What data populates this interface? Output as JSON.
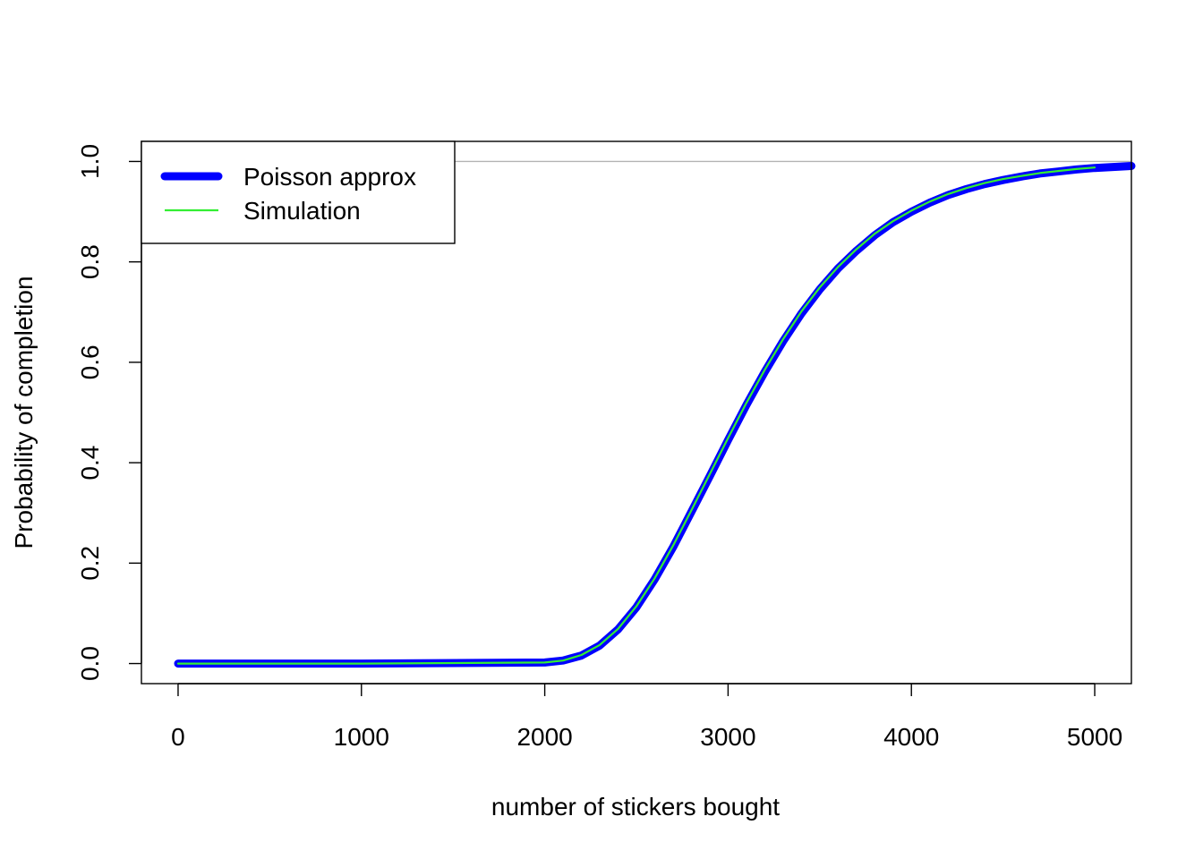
{
  "chart_data": {
    "type": "line",
    "title": "",
    "xlabel": "number of stickers bought",
    "ylabel": "Probability of completion",
    "xlim": [
      -200,
      5200
    ],
    "ylim": [
      -0.04,
      1.04
    ],
    "x_ticks": [
      0,
      1000,
      2000,
      3000,
      4000,
      5000
    ],
    "x_tick_labels": [
      "0",
      "1000",
      "2000",
      "3000",
      "4000",
      "5000"
    ],
    "y_ticks": [
      0.0,
      0.2,
      0.4,
      0.6,
      0.8,
      1.0
    ],
    "y_tick_labels": [
      "0.0",
      "0.2",
      "0.4",
      "0.6",
      "0.8",
      "1.0"
    ],
    "grid": false,
    "reference_line": {
      "y": 1.0,
      "color": "#b3b3b3"
    },
    "legend": {
      "position": "top-left"
    },
    "series": [
      {
        "name": "Poisson approx",
        "color": "#0000ff",
        "style": "thick",
        "x": [
          0,
          1000,
          2000,
          2100,
          2200,
          2300,
          2400,
          2500,
          2600,
          2700,
          2800,
          2900,
          3000,
          3100,
          3200,
          3300,
          3400,
          3500,
          3600,
          3700,
          3800,
          3900,
          4000,
          4100,
          4200,
          4300,
          4400,
          4500,
          4600,
          4700,
          4800,
          4900,
          5000,
          5200
        ],
        "y": [
          0.0,
          0.0,
          0.002,
          0.006,
          0.016,
          0.036,
          0.068,
          0.112,
          0.168,
          0.232,
          0.302,
          0.373,
          0.445,
          0.515,
          0.581,
          0.642,
          0.697,
          0.745,
          0.787,
          0.822,
          0.853,
          0.879,
          0.9,
          0.918,
          0.933,
          0.945,
          0.955,
          0.963,
          0.97,
          0.976,
          0.98,
          0.984,
          0.987,
          0.991
        ]
      },
      {
        "name": "Simulation",
        "color": "#33ee33",
        "style": "thin",
        "x": [
          0,
          1000,
          2000,
          2100,
          2200,
          2300,
          2400,
          2500,
          2600,
          2700,
          2800,
          2900,
          3000,
          3100,
          3200,
          3300,
          3400,
          3500,
          3600,
          3700,
          3800,
          3900,
          4000,
          4100,
          4200,
          4300,
          4400,
          4500,
          4600,
          4700,
          4800,
          4900,
          5000
        ],
        "y": [
          0.0,
          0.0,
          0.002,
          0.006,
          0.017,
          0.037,
          0.069,
          0.114,
          0.17,
          0.235,
          0.305,
          0.377,
          0.449,
          0.519,
          0.585,
          0.646,
          0.701,
          0.749,
          0.79,
          0.825,
          0.856,
          0.881,
          0.902,
          0.92,
          0.935,
          0.947,
          0.957,
          0.965,
          0.971,
          0.977,
          0.981,
          0.985,
          0.988
        ]
      }
    ]
  }
}
